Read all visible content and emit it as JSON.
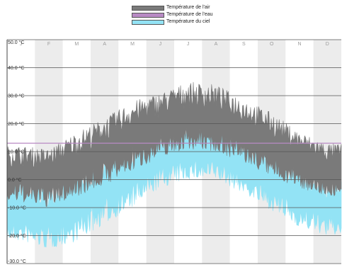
{
  "chart_data": {
    "type": "area",
    "title": "",
    "xlabel": "",
    "ylabel": "",
    "legend_placement": "top-center",
    "grid": true,
    "ylim": [
      -30,
      50
    ],
    "yticks": [
      "50.0 °C",
      "40.0 °C",
      "30.0 °C",
      "20.0 °C",
      "10.0 °C",
      "0.0 °C",
      "-10.0 °C",
      "-20.0 °C",
      "-30.0 °C"
    ],
    "categories": [
      "J",
      "F",
      "M",
      "A",
      "M",
      "J",
      "J",
      "A",
      "S",
      "O",
      "N",
      "D"
    ],
    "series": [
      {
        "name": "Température de l'air",
        "color": "#7a7a7a",
        "monthly_mean": [
          2,
          1,
          5,
          10,
          15,
          19,
          22,
          21,
          17,
          12,
          7,
          3
        ],
        "monthly_min": [
          -8,
          -10,
          -6,
          -2,
          3,
          8,
          11,
          10,
          6,
          1,
          -3,
          -6
        ],
        "monthly_max": [
          12,
          11,
          17,
          22,
          28,
          31,
          35,
          34,
          29,
          24,
          17,
          13
        ]
      },
      {
        "name": "Température de l'eau",
        "color": "#b88ac4",
        "value": 13
      },
      {
        "name": "Température du ciel",
        "color": "#93e3f5",
        "monthly_mean": [
          -12,
          -13,
          -9,
          -3,
          2,
          8,
          11,
          10,
          5,
          -1,
          -6,
          -10
        ],
        "monthly_min": [
          -22,
          -25,
          -22,
          -16,
          -10,
          -3,
          0,
          0,
          -5,
          -11,
          -17,
          -20
        ],
        "monthly_max": [
          0,
          -2,
          3,
          7,
          12,
          16,
          20,
          19,
          15,
          10,
          4,
          0
        ]
      }
    ]
  }
}
